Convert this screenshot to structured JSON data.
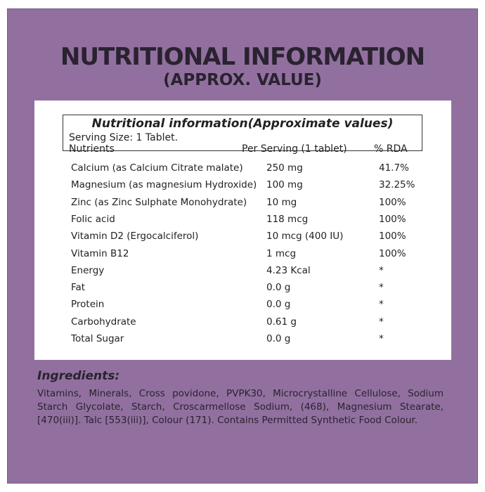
{
  "header": {
    "title": "NUTRITIONAL INFORMATION",
    "subtitle": "(APPROX. VALUE)"
  },
  "table": {
    "title": "Nutritional information(Approximate values)",
    "serving": "Serving Size: 1 Tablet.",
    "columns": [
      "Nutrients",
      "Per Serving (1 tablet)",
      "% RDA"
    ],
    "rows": [
      [
        "Calcium (as Calcium Citrate malate)",
        "250 mg",
        "41.7%"
      ],
      [
        "Magnesium (as magnesium Hydroxide)",
        "100 mg",
        "32.25%"
      ],
      [
        "Zinc (as Zinc Sulphate Monohydrate)",
        "10 mg",
        "100%"
      ],
      [
        "Folic acid",
        "118 mcg",
        "100%"
      ],
      [
        "Vitamin D2 (Ergocalciferol)",
        "10 mcg (400 IU)",
        "100%"
      ],
      [
        "Vitamin B12",
        "1 mcg",
        "100%"
      ],
      [
        "Energy",
        "4.23 Kcal",
        "*"
      ],
      [
        "Fat",
        "0.0 g",
        "*"
      ],
      [
        "Protein",
        "0.0 g",
        "*"
      ],
      [
        "Carbohydrate",
        "0.61 g",
        "*"
      ],
      [
        "Total Sugar",
        "0.0 g",
        "*"
      ]
    ]
  },
  "ingredients": {
    "heading": "Ingredients:",
    "text": "Vitamins, Minerals, Cross povidone, PVPK30, Microcrystalline Cellulose, Sodium Starch Glycolate, Starch, Croscarmellose Sodium, (468), Magnesium Stearate, [470(iii)]. Talc [553(iii)], Colour (171). Contains Permitted Synthetic Food Colour."
  }
}
